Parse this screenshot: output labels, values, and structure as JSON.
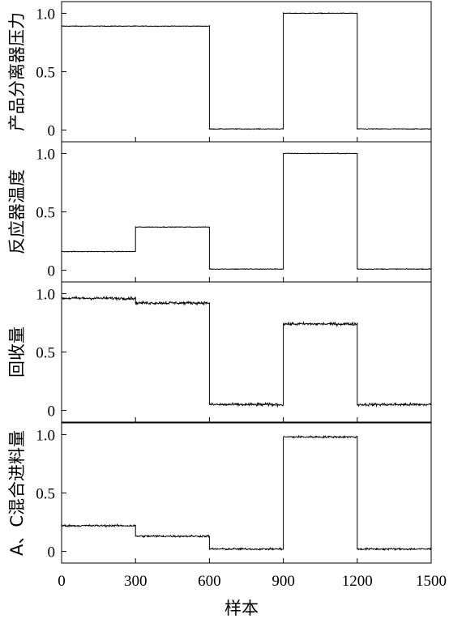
{
  "chart_data": {
    "type": "line",
    "xlabel": "样本",
    "xlim": [
      0,
      1500
    ],
    "xticks": [
      0,
      300,
      600,
      900,
      1200,
      1500
    ],
    "xtick_labels": [
      "0",
      "300",
      "600",
      "900",
      "1200",
      "1500"
    ],
    "yticks": [
      0,
      0.5,
      1.0
    ],
    "ytick_labels": [
      "0",
      "0.5",
      "1.0"
    ],
    "panels": [
      {
        "ylabel": "产品分离器压力",
        "ylim": [
          -0.1,
          1.1
        ],
        "noise": 0.003,
        "segments": [
          {
            "x0": 0,
            "x1": 300,
            "y": 0.89
          },
          {
            "x0": 300,
            "x1": 600,
            "y": 0.89
          },
          {
            "x0": 600,
            "x1": 900,
            "y": 0.01
          },
          {
            "x0": 900,
            "x1": 1200,
            "y": 1.0
          },
          {
            "x0": 1200,
            "x1": 1500,
            "y": 0.01
          }
        ]
      },
      {
        "ylabel": "反应器温度",
        "ylim": [
          -0.1,
          1.1
        ],
        "noise": 0.003,
        "segments": [
          {
            "x0": 0,
            "x1": 300,
            "y": 0.16
          },
          {
            "x0": 300,
            "x1": 600,
            "y": 0.37
          },
          {
            "x0": 600,
            "x1": 900,
            "y": 0.01
          },
          {
            "x0": 900,
            "x1": 1200,
            "y": 1.0
          },
          {
            "x0": 1200,
            "x1": 1500,
            "y": 0.01
          }
        ]
      },
      {
        "ylabel": "回收量",
        "ylim": [
          -0.1,
          1.1
        ],
        "noise": 0.012,
        "segments": [
          {
            "x0": 0,
            "x1": 300,
            "y": 0.96
          },
          {
            "x0": 300,
            "x1": 600,
            "y": 0.92
          },
          {
            "x0": 600,
            "x1": 900,
            "y": 0.05
          },
          {
            "x0": 900,
            "x1": 1200,
            "y": 0.74
          },
          {
            "x0": 1200,
            "x1": 1500,
            "y": 0.05
          }
        ]
      },
      {
        "ylabel": "A、C混合进料量",
        "ylim": [
          -0.1,
          1.1
        ],
        "noise": 0.008,
        "segments": [
          {
            "x0": 0,
            "x1": 300,
            "y": 0.22
          },
          {
            "x0": 300,
            "x1": 600,
            "y": 0.13
          },
          {
            "x0": 600,
            "x1": 900,
            "y": 0.02
          },
          {
            "x0": 900,
            "x1": 1200,
            "y": 0.98
          },
          {
            "x0": 1200,
            "x1": 1500,
            "y": 0.02
          }
        ]
      }
    ]
  }
}
